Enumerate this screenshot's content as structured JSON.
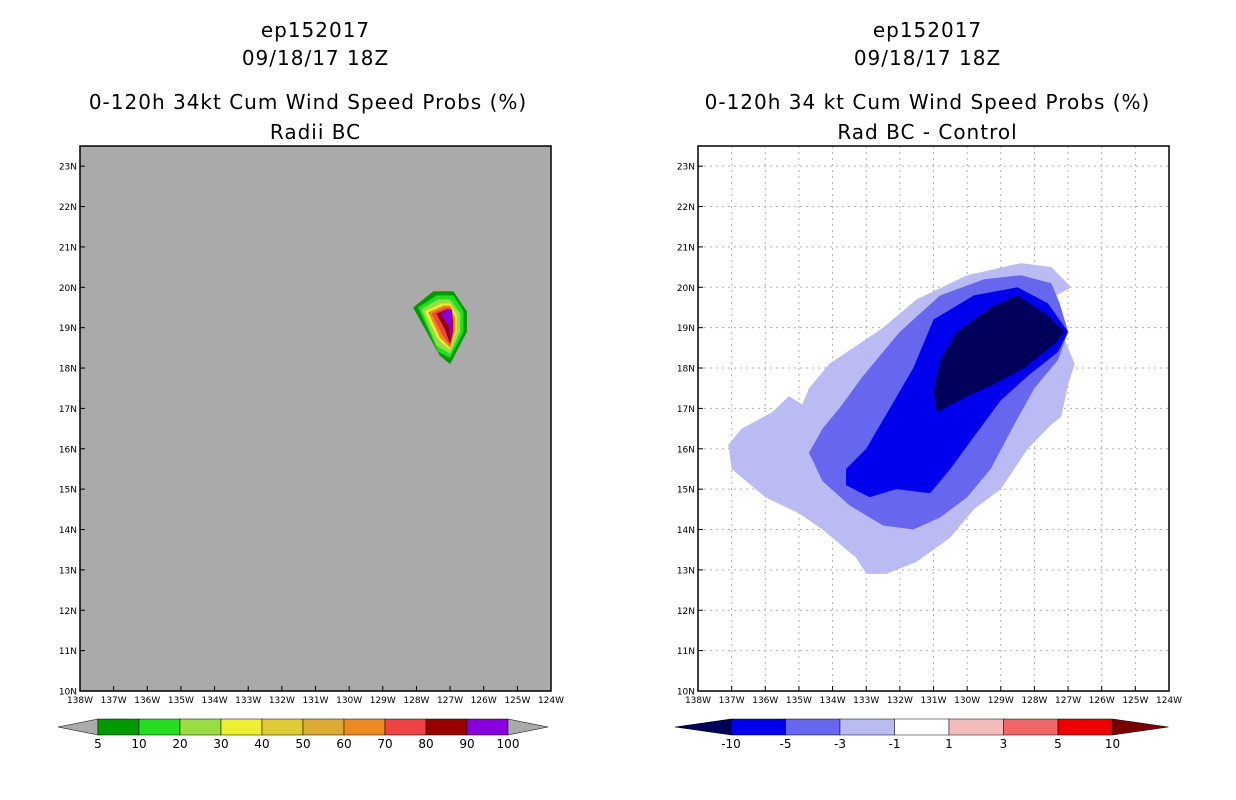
{
  "colors": {
    "left_background": "#aaaaaa",
    "right_background": "#ffffff",
    "frame": "#000000"
  },
  "left_panel": {
    "storm_id": "ep152017",
    "datetime": "09/18/17 18Z",
    "title": "0-120h 34kt Cum Wind Speed Probs (%)",
    "subtitle": "Radii BC"
  },
  "right_panel": {
    "storm_id": "ep152017",
    "datetime": "09/18/17 18Z",
    "title": "0-120h 34 kt Cum Wind Speed Probs (%)",
    "subtitle": "Rad BC - Control"
  },
  "map_extent": {
    "lon_min": -138,
    "lon_max": -124,
    "lat_min": 10,
    "lat_max": 23.5
  },
  "lon_tick_labels": [
    "138W",
    "137W",
    "136W",
    "135W",
    "134W",
    "133W",
    "132W",
    "131W",
    "130W",
    "129W",
    "128W",
    "127W",
    "126W",
    "125W",
    "124W"
  ],
  "lat_tick_labels": [
    "10N",
    "11N",
    "12N",
    "13N",
    "14N",
    "15N",
    "16N",
    "17N",
    "18N",
    "19N",
    "20N",
    "21N",
    "22N",
    "23N"
  ],
  "left_colorbar": {
    "colors": [
      "#009900",
      "#22dd22",
      "#99dd44",
      "#eeee33",
      "#ddcc33",
      "#ddaa33",
      "#ee8822",
      "#ee4444",
      "#990000",
      "#8800dd"
    ],
    "labels": [
      "5",
      "10",
      "20",
      "30",
      "40",
      "50",
      "60",
      "70",
      "80",
      "90",
      "100"
    ]
  },
  "right_colorbar": {
    "colors": [
      "#00005a",
      "#0000ee",
      "#6666ee",
      "#bbbbf4",
      "#ffffff",
      "#f4bbbb",
      "#ee6666",
      "#ee0000",
      "#770000"
    ],
    "labels": [
      "-10",
      "-5",
      "-3",
      "-1",
      "1",
      "3",
      "5",
      "10"
    ]
  },
  "left_contours": [
    {
      "level": "5",
      "color": "#009900",
      "points": [
        [
          -127.5,
          19.9
        ],
        [
          -126.9,
          19.9
        ],
        [
          -126.5,
          19.4
        ],
        [
          -126.5,
          18.9
        ],
        [
          -127.0,
          18.1
        ],
        [
          -127.3,
          18.3
        ],
        [
          -128.1,
          19.5
        ]
      ]
    },
    {
      "level": "10",
      "color": "#22dd22",
      "points": [
        [
          -127.4,
          19.8
        ],
        [
          -126.9,
          19.8
        ],
        [
          -126.6,
          19.4
        ],
        [
          -126.6,
          18.9
        ],
        [
          -127.0,
          18.25
        ],
        [
          -127.35,
          18.4
        ],
        [
          -127.95,
          19.5
        ]
      ]
    },
    {
      "level": "20",
      "color": "#99dd44",
      "points": [
        [
          -127.35,
          19.7
        ],
        [
          -127.0,
          19.7
        ],
        [
          -126.7,
          19.35
        ],
        [
          -126.7,
          18.9
        ],
        [
          -127.0,
          18.35
        ],
        [
          -127.4,
          18.55
        ],
        [
          -127.85,
          19.45
        ]
      ]
    },
    {
      "level": "30",
      "color": "#eeee33",
      "points": [
        [
          -127.25,
          19.6
        ],
        [
          -127.0,
          19.6
        ],
        [
          -126.8,
          19.3
        ],
        [
          -126.8,
          18.9
        ],
        [
          -127.0,
          18.45
        ],
        [
          -127.35,
          18.7
        ],
        [
          -127.75,
          19.4
        ]
      ]
    },
    {
      "level": "60",
      "color": "#ee8822",
      "points": [
        [
          -127.2,
          19.55
        ],
        [
          -127.0,
          19.55
        ],
        [
          -126.85,
          19.25
        ],
        [
          -126.85,
          18.9
        ],
        [
          -127.0,
          18.5
        ],
        [
          -127.3,
          18.75
        ],
        [
          -127.65,
          19.38
        ]
      ]
    },
    {
      "level": "70",
      "color": "#ee4444",
      "points": [
        [
          -127.15,
          19.5
        ],
        [
          -127.0,
          19.5
        ],
        [
          -126.9,
          19.2
        ],
        [
          -126.9,
          18.9
        ],
        [
          -127.0,
          18.55
        ],
        [
          -127.25,
          18.85
        ],
        [
          -127.55,
          19.35
        ]
      ]
    },
    {
      "level": "80",
      "color": "#990000",
      "points": [
        [
          -127.1,
          19.45
        ],
        [
          -126.95,
          19.45
        ],
        [
          -126.92,
          19.15
        ],
        [
          -126.92,
          18.9
        ],
        [
          -127.0,
          18.6
        ],
        [
          -127.15,
          18.95
        ],
        [
          -127.4,
          19.35
        ]
      ]
    },
    {
      "level": "90",
      "color": "#8800dd",
      "points": [
        [
          -127.05,
          19.45
        ],
        [
          -126.95,
          19.45
        ],
        [
          -126.95,
          19.05
        ],
        [
          -126.95,
          18.85
        ],
        [
          -127.0,
          18.75
        ],
        [
          -127.05,
          19.05
        ],
        [
          -127.3,
          19.35
        ]
      ]
    }
  ],
  "right_contours": [
    {
      "level": "-1",
      "color": "#bbbbf4",
      "points": [
        [
          -132.5,
          19.0
        ],
        [
          -131.5,
          19.7
        ],
        [
          -130.0,
          20.3
        ],
        [
          -128.4,
          20.6
        ],
        [
          -127.5,
          20.5
        ],
        [
          -126.9,
          20.0
        ],
        [
          -127.35,
          19.8
        ],
        [
          -127.2,
          18.9
        ],
        [
          -126.8,
          18.1
        ],
        [
          -127.0,
          17.6
        ],
        [
          -127.2,
          16.8
        ],
        [
          -127.5,
          16.6
        ],
        [
          -128.2,
          16.0
        ],
        [
          -129.0,
          15.0
        ],
        [
          -129.8,
          14.5
        ],
        [
          -130.5,
          13.8
        ],
        [
          -131.5,
          13.2
        ],
        [
          -132.4,
          12.9
        ],
        [
          -133.0,
          12.9
        ],
        [
          -133.3,
          13.3
        ],
        [
          -134.3,
          14.0
        ],
        [
          -135.0,
          14.4
        ],
        [
          -136.0,
          14.8
        ],
        [
          -137.0,
          15.5
        ],
        [
          -137.1,
          16.1
        ],
        [
          -136.7,
          16.5
        ],
        [
          -135.8,
          16.9
        ],
        [
          -135.3,
          17.3
        ],
        [
          -134.9,
          17.1
        ],
        [
          -134.7,
          17.5
        ],
        [
          -134.1,
          18.1
        ]
      ]
    },
    {
      "level": "-3",
      "color": "#6666ee",
      "points": [
        [
          -132.0,
          18.9
        ],
        [
          -130.8,
          19.8
        ],
        [
          -129.5,
          20.2
        ],
        [
          -128.4,
          20.3
        ],
        [
          -127.5,
          20.1
        ],
        [
          -127.25,
          19.6
        ],
        [
          -127.0,
          18.9
        ],
        [
          -127.3,
          18.2
        ],
        [
          -128.0,
          17.5
        ],
        [
          -128.6,
          16.6
        ],
        [
          -129.3,
          15.5
        ],
        [
          -130.0,
          14.8
        ],
        [
          -130.8,
          14.3
        ],
        [
          -131.6,
          14.0
        ],
        [
          -132.5,
          14.1
        ],
        [
          -133.5,
          14.6
        ],
        [
          -134.3,
          15.2
        ],
        [
          -134.7,
          15.9
        ],
        [
          -134.3,
          16.5
        ],
        [
          -133.8,
          17.0
        ],
        [
          -133.1,
          17.8
        ]
      ]
    },
    {
      "level": "-5",
      "color": "#0000ee",
      "points": [
        [
          -131.0,
          19.2
        ],
        [
          -129.8,
          19.8
        ],
        [
          -128.5,
          20.0
        ],
        [
          -127.6,
          19.6
        ],
        [
          -127.0,
          18.9
        ],
        [
          -127.3,
          18.4
        ],
        [
          -128.2,
          17.8
        ],
        [
          -129.0,
          17.2
        ],
        [
          -129.8,
          16.3
        ],
        [
          -130.5,
          15.5
        ],
        [
          -131.1,
          14.9
        ],
        [
          -132.1,
          15.0
        ],
        [
          -132.9,
          14.8
        ],
        [
          -133.6,
          15.1
        ],
        [
          -133.6,
          15.5
        ],
        [
          -133.0,
          16.0
        ],
        [
          -132.3,
          17.0
        ],
        [
          -131.6,
          18.0
        ]
      ]
    },
    {
      "level": "-10",
      "color": "#00005a",
      "points": [
        [
          -130.3,
          18.9
        ],
        [
          -129.3,
          19.5
        ],
        [
          -128.5,
          19.8
        ],
        [
          -127.6,
          19.3
        ],
        [
          -127.1,
          18.9
        ],
        [
          -127.4,
          18.6
        ],
        [
          -128.3,
          18.0
        ],
        [
          -129.2,
          17.6
        ],
        [
          -130.0,
          17.3
        ],
        [
          -130.9,
          16.9
        ],
        [
          -131.0,
          17.4
        ],
        [
          -130.8,
          18.2
        ]
      ]
    }
  ]
}
